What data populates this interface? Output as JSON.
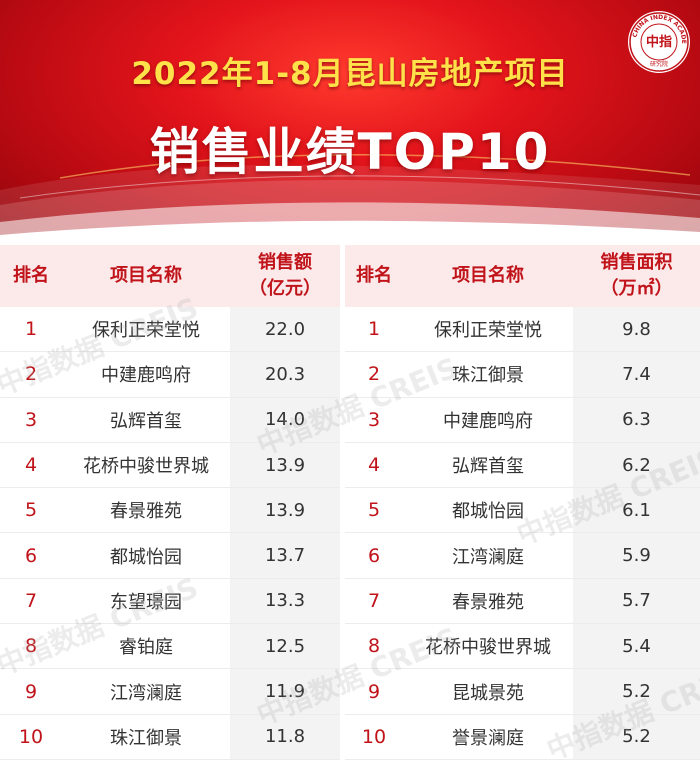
{
  "header": {
    "title_line1": "2022年1-8月昆山房地产项目",
    "title_line2": "销售业绩TOP10",
    "logo_text": "中指",
    "logo_ring_text": "CHINA INDEX ACADEMY",
    "logo_sub_text": "研究院"
  },
  "watermark": {
    "text": "中指数据 CREIS"
  },
  "colors": {
    "banner_red": "#e3141b",
    "title_yellow": "#ffe14a",
    "header_text_red": "#c0141a",
    "header_bg": "#fce9ea"
  },
  "chart_data": [
    {
      "type": "table",
      "columns": [
        "排名",
        "项目名称",
        "销售额（亿元）"
      ],
      "header_labels": {
        "rank": "排名",
        "name": "项目名称",
        "value_line1": "销售额",
        "value_line2": "（亿元）"
      },
      "rows": [
        {
          "rank": "1",
          "name": "保利正荣堂悦",
          "value": "22.0"
        },
        {
          "rank": "2",
          "name": "中建鹿鸣府",
          "value": "20.3"
        },
        {
          "rank": "3",
          "name": "弘辉首玺",
          "value": "14.0"
        },
        {
          "rank": "4",
          "name": "花桥中骏世界城",
          "value": "13.9"
        },
        {
          "rank": "5",
          "name": "春景雅苑",
          "value": "13.9"
        },
        {
          "rank": "6",
          "name": "都城怡园",
          "value": "13.7"
        },
        {
          "rank": "7",
          "name": "东望璟园",
          "value": "13.3"
        },
        {
          "rank": "8",
          "name": "睿铂庭",
          "value": "12.5"
        },
        {
          "rank": "9",
          "name": "江湾澜庭",
          "value": "11.9"
        },
        {
          "rank": "10",
          "name": "珠江御景",
          "value": "11.8"
        }
      ]
    },
    {
      "type": "table",
      "columns": [
        "排名",
        "项目名称",
        "销售面积（万㎡）"
      ],
      "header_labels": {
        "rank": "排名",
        "name": "项目名称",
        "value_line1": "销售面积",
        "value_line2": "（万㎡）"
      },
      "rows": [
        {
          "rank": "1",
          "name": "保利正荣堂悦",
          "value": "9.8"
        },
        {
          "rank": "2",
          "name": "珠江御景",
          "value": "7.4"
        },
        {
          "rank": "3",
          "name": "中建鹿鸣府",
          "value": "6.3"
        },
        {
          "rank": "4",
          "name": "弘辉首玺",
          "value": "6.2"
        },
        {
          "rank": "5",
          "name": "都城怡园",
          "value": "6.1"
        },
        {
          "rank": "6",
          "name": "江湾澜庭",
          "value": "5.9"
        },
        {
          "rank": "7",
          "name": "春景雅苑",
          "value": "5.7"
        },
        {
          "rank": "8",
          "name": "花桥中骏世界城",
          "value": "5.4"
        },
        {
          "rank": "9",
          "name": "昆城景苑",
          "value": "5.2"
        },
        {
          "rank": "10",
          "name": "誉景澜庭",
          "value": "5.2"
        }
      ]
    }
  ]
}
